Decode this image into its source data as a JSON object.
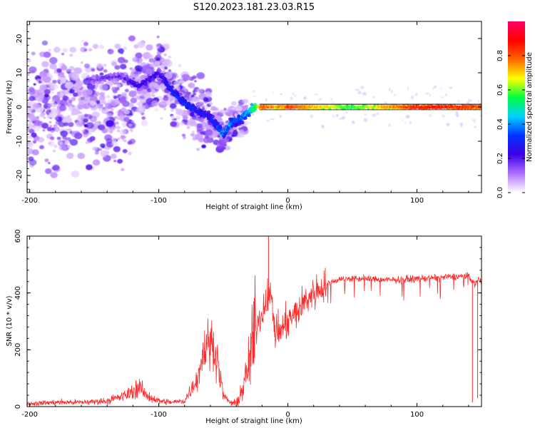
{
  "title": "S120.2023.181.23.03.R15",
  "chart_data": [
    {
      "type": "heatmap",
      "xlabel": "Height of straight line (km)",
      "ylabel": "Frequency (Hz)",
      "xlim": [
        -202,
        150
      ],
      "ylim": [
        -25,
        25
      ],
      "xticks": [
        -200,
        -100,
        0,
        100
      ],
      "yticks": [
        -20,
        -10,
        0,
        10,
        20
      ],
      "colorbar": {
        "label": "Normalized spectral amplitude",
        "range": [
          0,
          1
        ],
        "ticks": [
          "0.0",
          "0.2",
          "0.4",
          "0.6",
          "0.8"
        ],
        "colormap": [
          "#ffffff",
          "#b070ff",
          "#3b00e6",
          "#0033ff",
          "#00d0ff",
          "#00ff40",
          "#ffff00",
          "#ff6600",
          "#ff0000",
          "#ff0066"
        ]
      },
      "ridge": {
        "x": [
          -150,
          -130,
          -115,
          -100,
          -90,
          -80,
          -70,
          -60,
          -50,
          -45,
          -40,
          -35,
          -30,
          -25,
          -20,
          -15,
          -10,
          -5,
          0,
          50,
          100,
          150
        ],
        "frequency": [
          8,
          9,
          6,
          10,
          5,
          1,
          -1,
          -3,
          -8,
          -5,
          -4,
          -3,
          -1,
          0,
          0,
          0,
          0,
          0,
          0,
          0,
          0,
          0
        ],
        "amplitude": [
          0.18,
          0.2,
          0.25,
          0.25,
          0.3,
          0.35,
          0.3,
          0.3,
          0.4,
          0.4,
          0.35,
          0.4,
          0.45,
          0.6,
          0.85,
          0.8,
          0.75,
          0.8,
          0.85,
          0.6,
          0.9,
          0.85
        ]
      }
    },
    {
      "type": "line",
      "xlabel": "Height of straight line (km)",
      "ylabel": "SNR (10 * v/v)",
      "xlim": [
        -202,
        150
      ],
      "ylim": [
        0,
        600
      ],
      "xticks": [
        -200,
        -100,
        0,
        100
      ],
      "yticks": [
        0,
        200,
        400,
        600
      ],
      "color": "#ff2a2a",
      "series": [
        {
          "x": [
            -202,
            -180,
            -160,
            -140,
            -125,
            -115,
            -110,
            -100,
            -90,
            -80,
            -70,
            -65,
            -60,
            -55,
            -50,
            -45,
            -40,
            -35,
            -30,
            -25,
            -20,
            -15,
            -12,
            -10,
            -5,
            0,
            5,
            10,
            15,
            20,
            30,
            40,
            60,
            80,
            100,
            120,
            140,
            145,
            148,
            150
          ],
          "y": [
            10,
            15,
            15,
            20,
            40,
            70,
            40,
            20,
            15,
            20,
            100,
            200,
            230,
            180,
            40,
            15,
            10,
            60,
            150,
            280,
            330,
            400,
            360,
            260,
            270,
            300,
            320,
            350,
            380,
            400,
            430,
            450,
            450,
            445,
            450,
            455,
            460,
            430,
            450,
            440
          ]
        }
      ],
      "spikes": [
        {
          "x": -15,
          "y": 600
        },
        {
          "x": 143,
          "y": 15
        },
        {
          "x": 147,
          "y": 30
        }
      ]
    }
  ]
}
